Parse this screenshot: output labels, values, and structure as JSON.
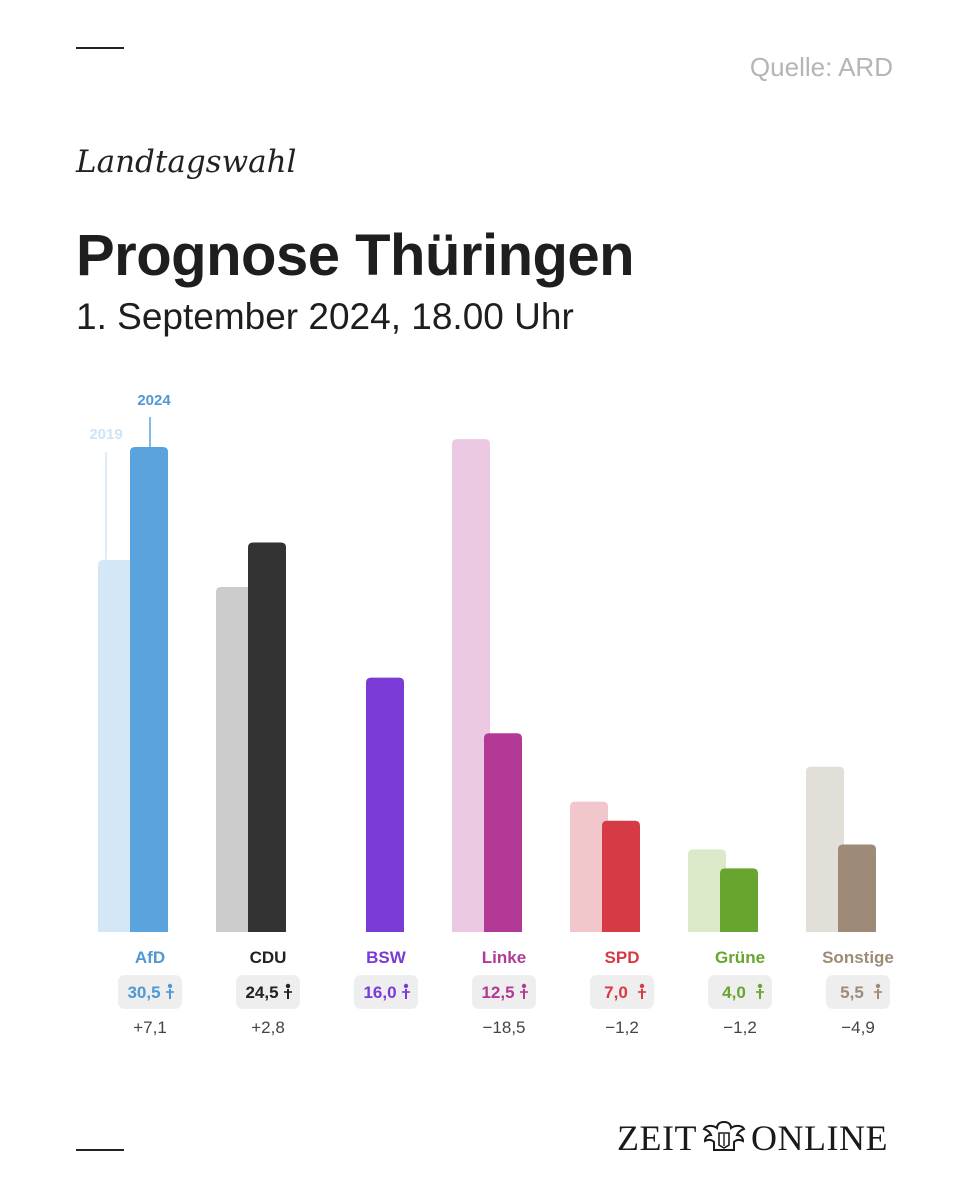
{
  "header": {
    "source": "Quelle: ARD",
    "kicker": "Landtagswahl",
    "title": "Prognose Thüringen",
    "subtitle": "1. September 2024, 18.00 Uhr"
  },
  "logo": {
    "left_text": "ZEIT",
    "right_text": "ONLINE",
    "emblem": "eagle-crest-icon"
  },
  "chart_data": {
    "type": "bar",
    "title": "Prognose Thüringen",
    "xlabel": "",
    "ylabel": "",
    "ylim": [
      0,
      32
    ],
    "grid": false,
    "legend": "inline-top-left",
    "series": [
      {
        "name": "2019",
        "values": [
          23.4,
          21.7,
          null,
          31.0,
          8.2,
          5.2,
          10.4
        ]
      },
      {
        "name": "2024",
        "values": [
          30.5,
          24.5,
          16.0,
          12.5,
          7.0,
          4.0,
          5.5
        ]
      }
    ],
    "categories": [
      "AfD",
      "CDU",
      "BSW",
      "Linke",
      "SPD",
      "Grüne",
      "Sonstige"
    ],
    "value_labels": [
      "30,5",
      "24,5",
      "16,0",
      "12,5",
      "7,0",
      "4,0",
      "5,5"
    ],
    "change_labels": [
      "+7,1",
      "+2,8",
      "",
      "−18,5",
      "−1,2",
      "−1,2",
      "−4,9"
    ],
    "colors_2024": [
      "#5ba3dd",
      "#333333",
      "#7a3ad6",
      "#b23a96",
      "#d63a44",
      "#67a52e",
      "#9d8b78"
    ],
    "colors_2019": [
      "#d4e7f6",
      "#cccccc",
      "#e6dcf6",
      "#ecc9e3",
      "#f1c7cc",
      "#dce9c8",
      "#e2dfd9"
    ],
    "label_colors": [
      "#4f98d6",
      "#222222",
      "#7a3ad6",
      "#b23a96",
      "#d63a44",
      "#67a52e",
      "#9d8b78"
    ]
  }
}
